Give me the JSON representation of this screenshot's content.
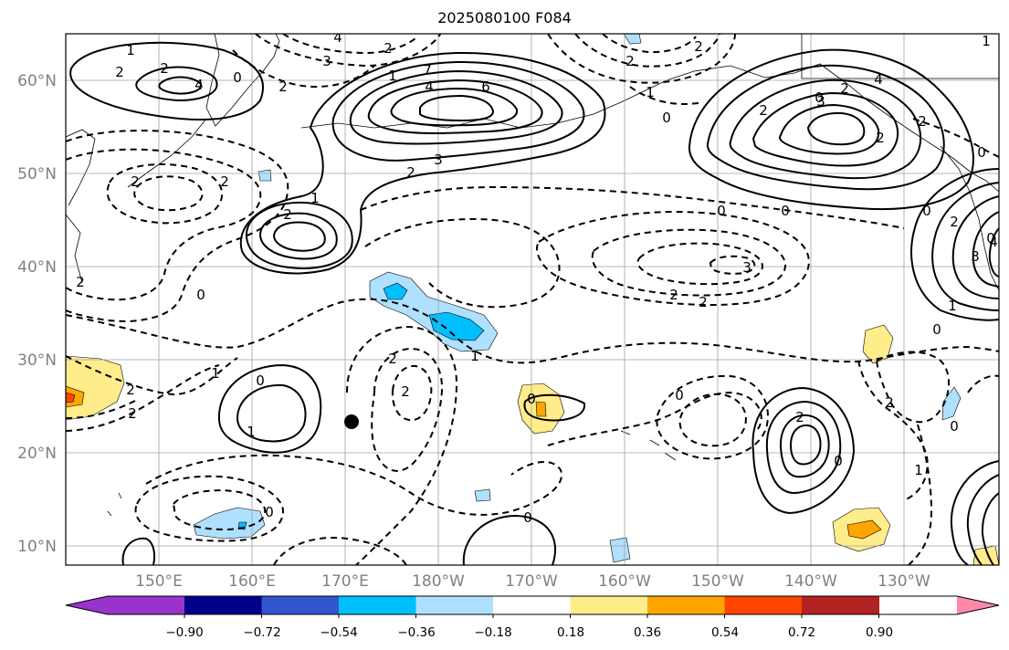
{
  "title": "2025080100 F084",
  "lat_labels": [
    "60°N",
    "50°N",
    "40°N",
    "30°N",
    "20°N",
    "10°N"
  ],
  "lon_labels": [
    "150°E",
    "160°E",
    "170°E",
    "180°W",
    "170°W",
    "160°W",
    "150°W",
    "140°W",
    "130°W"
  ],
  "colorbar": {
    "ticks": [
      "−0.90",
      "−0.72",
      "−0.54",
      "−0.36",
      "−0.18",
      "0.18",
      "0.36",
      "0.54",
      "0.72",
      "0.90"
    ],
    "colors": [
      "#9933cc",
      "#00008b",
      "#3355cc",
      "#00bfff",
      "#b0e0ff",
      "#ffffff",
      "#ffec8b",
      "#ffa500",
      "#ff4500",
      "#b22222",
      "#ff88aa"
    ]
  },
  "contour_labels": {
    "l1": "1",
    "l2": "2",
    "l3": "2",
    "l4": "4",
    "l5": "0",
    "l6": "4",
    "l7": "3",
    "l8": "2",
    "l9": "2",
    "l10": "1",
    "l11": "7",
    "l12": "4",
    "l13": "6",
    "l14": "3",
    "l15": "2",
    "l16": "1",
    "l17": "2",
    "l18": "2",
    "l19": "2",
    "l20": "0",
    "l21": "2",
    "l22": "2",
    "l23": "0",
    "l24": "1",
    "l25": "1",
    "l26": "2",
    "l27": "2",
    "l28": "0",
    "l29": "0",
    "l30": "0",
    "l31": "2",
    "l32": "3",
    "l33": "2",
    "l34": "2",
    "l35": "0",
    "l36": "0",
    "l37": "2",
    "l38": "2",
    "l39": "3",
    "l40": "0",
    "l41": "2",
    "l42": "3",
    "l43": "4",
    "l44": "1",
    "l45": "0",
    "l46": "4",
    "l47": "2",
    "l48": "1",
    "l49": "0",
    "l50": "0",
    "l51": "1",
    "l52": "2",
    "l53": "0",
    "l54": "1",
    "l55": "2",
    "l56": "0",
    "l57": "0",
    "l58": "2",
    "l59": "1",
    "l60": "0",
    "l61": "2",
    "l62": "0",
    "l63": "2"
  }
}
